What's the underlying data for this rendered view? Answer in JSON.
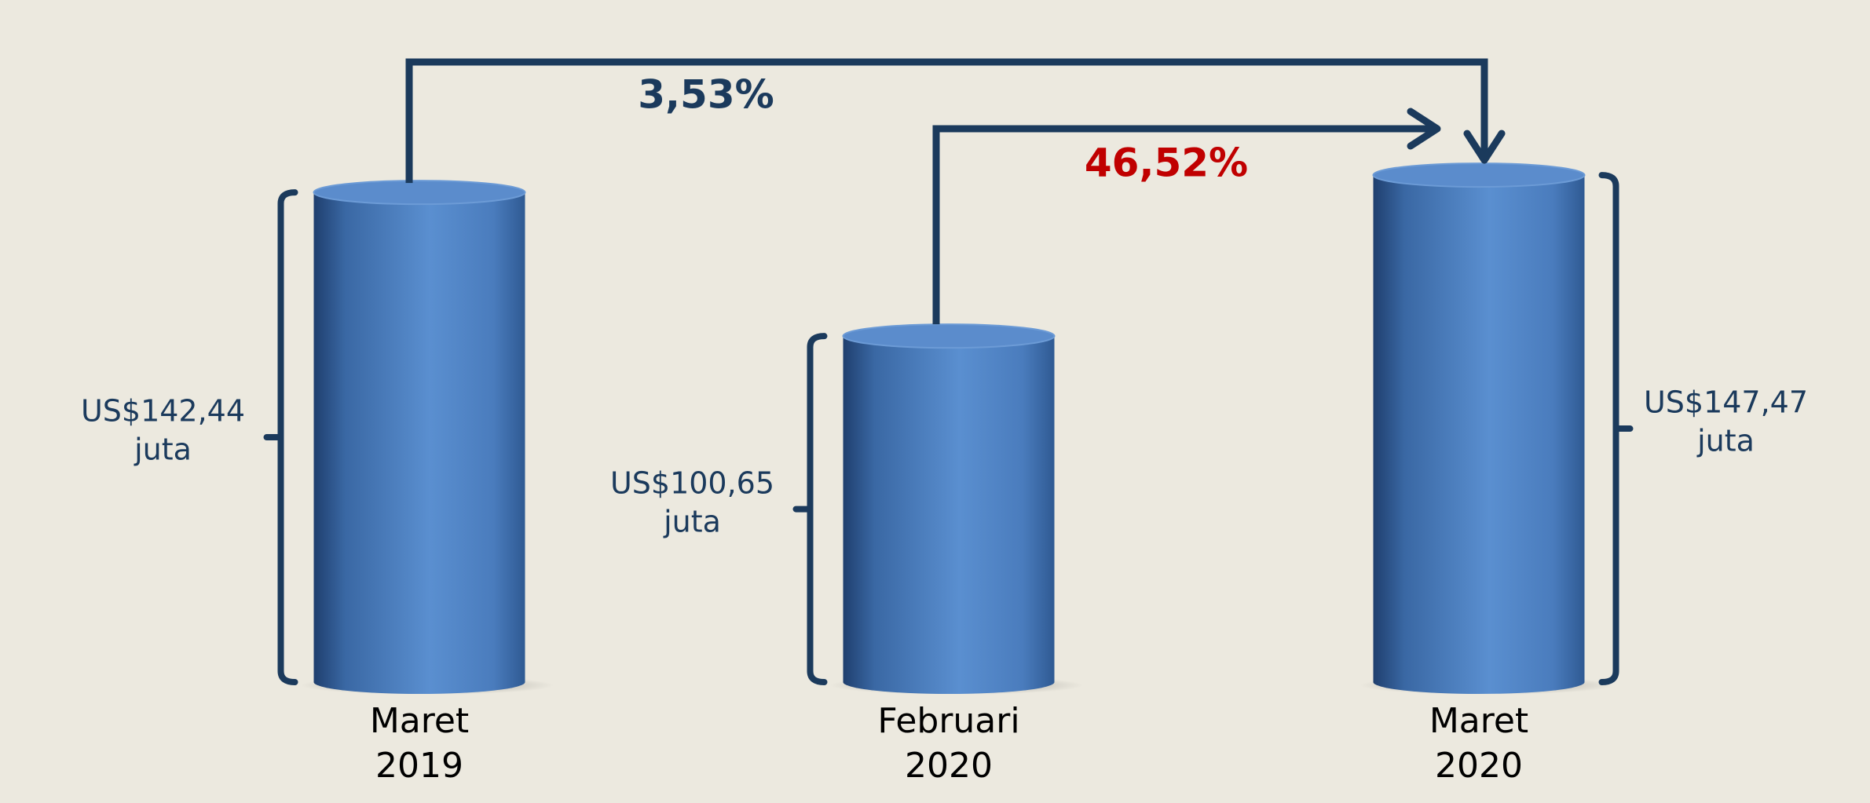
{
  "chart_data": {
    "type": "cylinder",
    "categories": [
      "Maret 2019",
      "Februari 2020",
      "Maret 2020"
    ],
    "values": [
      142.44,
      100.65,
      147.47
    ],
    "value_labels": [
      "US$142,44 juta",
      "US$100,65 juta",
      "US$147,47 juta"
    ],
    "color": "#4a7fc1",
    "annotations": [
      {
        "text": "3,53%",
        "from": 0,
        "to": 2,
        "color": "#1b3a5c"
      },
      {
        "text": "46,52%",
        "from": 1,
        "to": 2,
        "color": "#c00000"
      }
    ]
  }
}
